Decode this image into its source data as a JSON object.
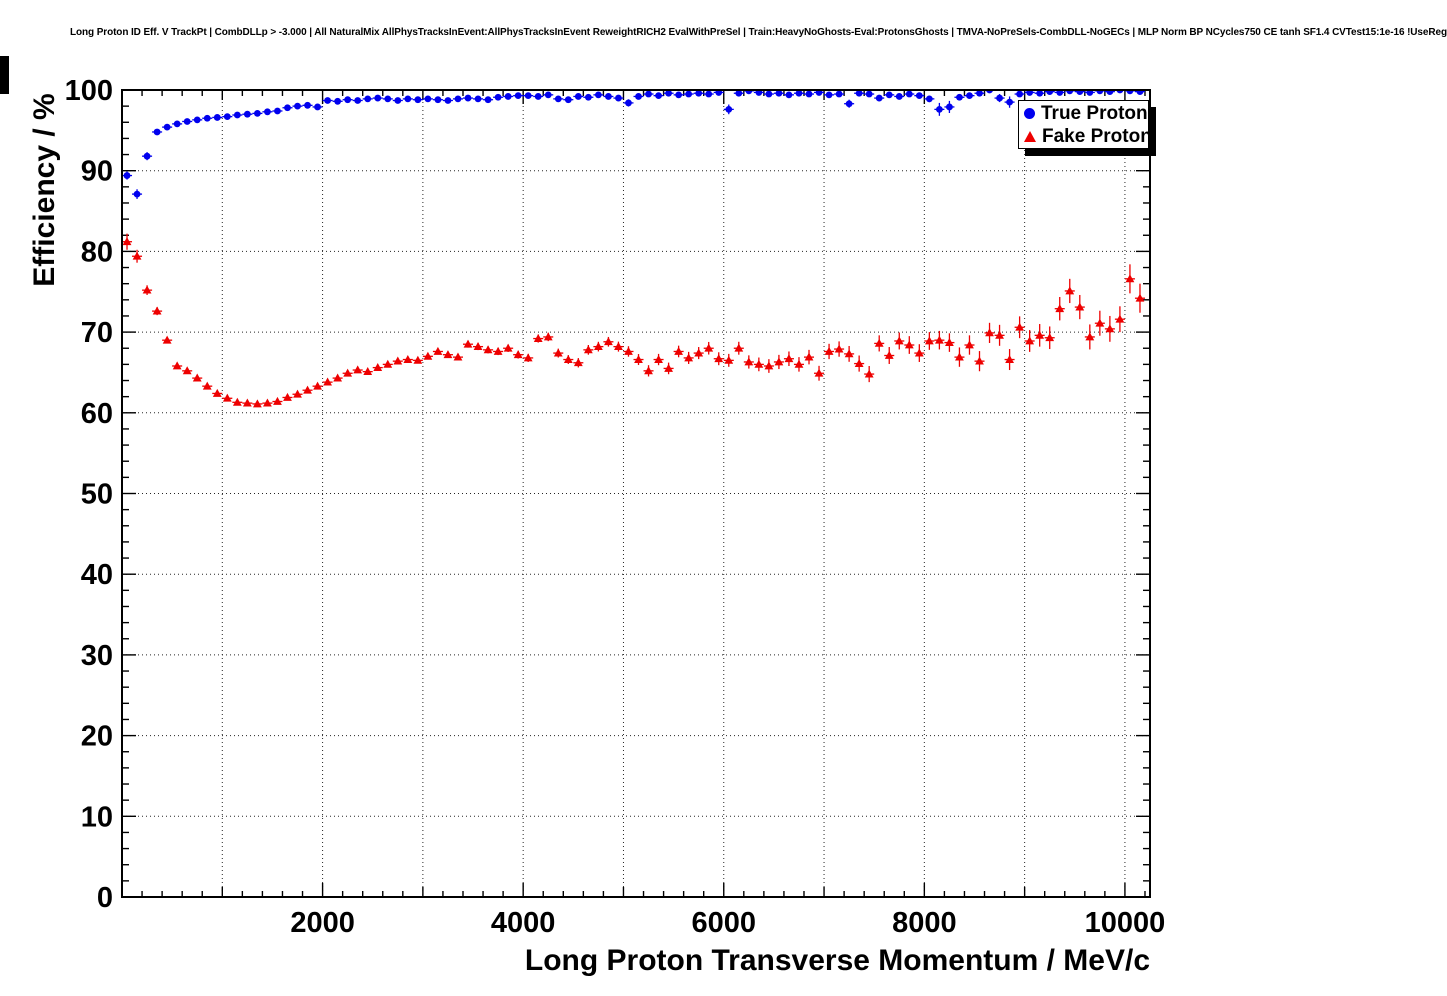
{
  "chart_data": {
    "type": "scatter",
    "title": "Long Proton ID Eff. V TrackPt | CombDLLp > -3.000 | All NaturalMix AllPhysTracksInEvent:AllPhysTracksInEvent ReweightRICH2 EvalWithPreSel | Train:HeavyNoGhosts-Eval:ProtonsGhosts | TMVA-NoPreSels-CombDLL-NoGECs | MLP Norm BP NCycles750 CE tanh SF1.4 CVTest15:1e-16 !UseReg",
    "xlabel": "Long Proton Transverse Momentum / MeV/c",
    "ylabel": "Efficiency / %",
    "xlim": [
      0,
      10250
    ],
    "ylim": [
      0,
      100
    ],
    "xticks": [
      2000,
      4000,
      6000,
      8000,
      10000
    ],
    "yticks": [
      0,
      10,
      20,
      30,
      40,
      50,
      60,
      70,
      80,
      90,
      100
    ],
    "x_minor_step": 200,
    "y_minor_step": 2,
    "grid": true,
    "grid_style": "dotted",
    "legend_position": "top-right",
    "background": "#ffffff",
    "frame_color": "#000000",
    "series": [
      {
        "name": "True Proton",
        "marker": "circle",
        "color": "#0000ee",
        "points": [
          [
            50,
            89.4,
            0.5
          ],
          [
            150,
            87.1,
            0.6
          ],
          [
            250,
            91.8,
            0.5
          ],
          [
            350,
            94.8,
            0.3
          ],
          [
            450,
            95.4,
            0.25
          ],
          [
            550,
            95.8,
            0.2
          ],
          [
            650,
            96.1,
            0.2
          ],
          [
            750,
            96.3,
            0.2
          ],
          [
            850,
            96.5,
            0.15
          ],
          [
            950,
            96.6,
            0.15
          ],
          [
            1050,
            96.7,
            0.15
          ],
          [
            1150,
            96.9,
            0.15
          ],
          [
            1250,
            97.0,
            0.12
          ],
          [
            1350,
            97.1,
            0.12
          ],
          [
            1450,
            97.3,
            0.12
          ],
          [
            1550,
            97.4,
            0.12
          ],
          [
            1650,
            97.8,
            0.12
          ],
          [
            1750,
            98.0,
            0.12
          ],
          [
            1850,
            98.1,
            0.12
          ],
          [
            1950,
            97.9,
            0.15
          ],
          [
            2050,
            98.7,
            0.12
          ],
          [
            2150,
            98.6,
            0.12
          ],
          [
            2250,
            98.8,
            0.12
          ],
          [
            2350,
            98.7,
            0.13
          ],
          [
            2450,
            98.9,
            0.13
          ],
          [
            2550,
            99.0,
            0.13
          ],
          [
            2650,
            98.9,
            0.14
          ],
          [
            2750,
            98.7,
            0.15
          ],
          [
            2850,
            98.9,
            0.14
          ],
          [
            2950,
            98.8,
            0.15
          ],
          [
            3050,
            98.9,
            0.15
          ],
          [
            3150,
            98.8,
            0.15
          ],
          [
            3250,
            98.7,
            0.16
          ],
          [
            3350,
            98.9,
            0.15
          ],
          [
            3450,
            99.0,
            0.15
          ],
          [
            3550,
            98.9,
            0.16
          ],
          [
            3650,
            98.8,
            0.17
          ],
          [
            3750,
            99.1,
            0.15
          ],
          [
            3850,
            99.2,
            0.15
          ],
          [
            3950,
            99.3,
            0.15
          ],
          [
            4050,
            99.3,
            0.15
          ],
          [
            4150,
            99.2,
            0.16
          ],
          [
            4250,
            99.4,
            0.15
          ],
          [
            4350,
            98.9,
            0.2
          ],
          [
            4450,
            98.8,
            0.2
          ],
          [
            4550,
            99.2,
            0.18
          ],
          [
            4650,
            99.1,
            0.2
          ],
          [
            4750,
            99.4,
            0.18
          ],
          [
            4850,
            99.2,
            0.2
          ],
          [
            4950,
            99.0,
            0.25
          ],
          [
            5050,
            98.4,
            0.45
          ],
          [
            5150,
            99.2,
            0.2
          ],
          [
            5250,
            99.5,
            0.18
          ],
          [
            5350,
            99.3,
            0.22
          ],
          [
            5450,
            99.6,
            0.15
          ],
          [
            5550,
            99.4,
            0.2
          ],
          [
            5650,
            99.5,
            0.18
          ],
          [
            5750,
            99.6,
            0.16
          ],
          [
            5850,
            99.5,
            0.2
          ],
          [
            5950,
            99.7,
            0.15
          ],
          [
            6050,
            97.6,
            0.6
          ],
          [
            6150,
            99.6,
            0.18
          ],
          [
            6250,
            99.9,
            0.1
          ],
          [
            6350,
            99.7,
            0.16
          ],
          [
            6450,
            99.5,
            0.22
          ],
          [
            6550,
            99.6,
            0.2
          ],
          [
            6650,
            99.4,
            0.28
          ],
          [
            6750,
            99.6,
            0.2
          ],
          [
            6850,
            99.5,
            0.24
          ],
          [
            6950,
            99.7,
            0.18
          ],
          [
            7050,
            99.4,
            0.3
          ],
          [
            7150,
            99.5,
            0.25
          ],
          [
            7250,
            98.3,
            0.5
          ],
          [
            7350,
            99.6,
            0.2
          ],
          [
            7450,
            99.5,
            0.25
          ],
          [
            7550,
            99.0,
            0.35
          ],
          [
            7650,
            99.4,
            0.3
          ],
          [
            7750,
            99.2,
            0.35
          ],
          [
            7850,
            99.5,
            0.25
          ],
          [
            7950,
            99.3,
            0.3
          ],
          [
            8050,
            98.9,
            0.4
          ],
          [
            8150,
            97.6,
            0.8
          ],
          [
            8250,
            97.9,
            0.75
          ],
          [
            8350,
            99.1,
            0.4
          ],
          [
            8450,
            99.3,
            0.35
          ],
          [
            8550,
            99.6,
            0.25
          ],
          [
            8650,
            100.0,
            0.05
          ],
          [
            8750,
            99.0,
            0.5
          ],
          [
            8850,
            98.5,
            0.7
          ],
          [
            8950,
            99.5,
            0.3
          ],
          [
            9050,
            99.7,
            0.25
          ],
          [
            9150,
            99.6,
            0.3
          ],
          [
            9250,
            99.8,
            0.2
          ],
          [
            9350,
            99.7,
            0.25
          ],
          [
            9450,
            99.9,
            0.1
          ],
          [
            9550,
            99.8,
            0.2
          ],
          [
            9650,
            99.7,
            0.3
          ],
          [
            9750,
            99.9,
            0.1
          ],
          [
            9850,
            99.8,
            0.2
          ],
          [
            9950,
            100.0,
            0.05
          ],
          [
            10050,
            99.9,
            0.1
          ],
          [
            10150,
            99.8,
            0.2
          ]
        ]
      },
      {
        "name": "Fake Proton",
        "marker": "triangle",
        "color": "#ee0000",
        "points": [
          [
            50,
            81.2,
            1.0
          ],
          [
            150,
            79.4,
            0.8
          ],
          [
            250,
            75.2,
            0.6
          ],
          [
            350,
            72.6,
            0.5
          ],
          [
            450,
            69.0,
            0.4
          ],
          [
            550,
            65.8,
            0.35
          ],
          [
            650,
            65.2,
            0.3
          ],
          [
            750,
            64.3,
            0.3
          ],
          [
            850,
            63.3,
            0.28
          ],
          [
            950,
            62.4,
            0.26
          ],
          [
            1050,
            61.8,
            0.25
          ],
          [
            1150,
            61.3,
            0.25
          ],
          [
            1250,
            61.2,
            0.24
          ],
          [
            1350,
            61.1,
            0.24
          ],
          [
            1450,
            61.2,
            0.24
          ],
          [
            1550,
            61.4,
            0.25
          ],
          [
            1650,
            61.9,
            0.25
          ],
          [
            1750,
            62.3,
            0.26
          ],
          [
            1850,
            62.8,
            0.26
          ],
          [
            1950,
            63.3,
            0.27
          ],
          [
            2050,
            63.8,
            0.28
          ],
          [
            2150,
            64.3,
            0.28
          ],
          [
            2250,
            64.9,
            0.3
          ],
          [
            2350,
            65.3,
            0.3
          ],
          [
            2450,
            65.1,
            0.3
          ],
          [
            2550,
            65.6,
            0.32
          ],
          [
            2650,
            66.0,
            0.33
          ],
          [
            2750,
            66.4,
            0.34
          ],
          [
            2850,
            66.6,
            0.35
          ],
          [
            2950,
            66.5,
            0.36
          ],
          [
            3050,
            67.0,
            0.37
          ],
          [
            3150,
            67.6,
            0.38
          ],
          [
            3250,
            67.2,
            0.4
          ],
          [
            3350,
            66.9,
            0.4
          ],
          [
            3450,
            68.5,
            0.42
          ],
          [
            3550,
            68.2,
            0.43
          ],
          [
            3650,
            67.8,
            0.44
          ],
          [
            3750,
            67.6,
            0.45
          ],
          [
            3850,
            68.0,
            0.46
          ],
          [
            3950,
            67.2,
            0.48
          ],
          [
            4050,
            66.8,
            0.5
          ],
          [
            4150,
            69.2,
            0.5
          ],
          [
            4250,
            69.4,
            0.52
          ],
          [
            4350,
            67.4,
            0.55
          ],
          [
            4450,
            66.6,
            0.55
          ],
          [
            4550,
            66.2,
            0.58
          ],
          [
            4650,
            67.8,
            0.6
          ],
          [
            4750,
            68.2,
            0.6
          ],
          [
            4850,
            68.8,
            0.6
          ],
          [
            4950,
            68.2,
            0.62
          ],
          [
            5050,
            67.6,
            0.65
          ],
          [
            5150,
            66.6,
            0.68
          ],
          [
            5250,
            65.2,
            0.7
          ],
          [
            5350,
            66.6,
            0.7
          ],
          [
            5450,
            65.5,
            0.72
          ],
          [
            5550,
            67.6,
            0.72
          ],
          [
            5650,
            66.8,
            0.75
          ],
          [
            5750,
            67.4,
            0.75
          ],
          [
            5850,
            68.0,
            0.78
          ],
          [
            5950,
            66.7,
            0.8
          ],
          [
            6050,
            66.5,
            0.8
          ],
          [
            6150,
            68.0,
            0.8
          ],
          [
            6250,
            66.3,
            0.82
          ],
          [
            6350,
            66.0,
            0.85
          ],
          [
            6450,
            65.8,
            0.85
          ],
          [
            6550,
            66.3,
            0.88
          ],
          [
            6650,
            66.7,
            0.9
          ],
          [
            6750,
            66.0,
            0.9
          ],
          [
            6850,
            66.9,
            0.9
          ],
          [
            6950,
            64.9,
            0.92
          ],
          [
            7050,
            67.6,
            0.95
          ],
          [
            7150,
            67.9,
            0.95
          ],
          [
            7250,
            67.3,
            0.98
          ],
          [
            7350,
            66.1,
            1.0
          ],
          [
            7450,
            64.8,
            1.0
          ],
          [
            7550,
            68.6,
            1.0
          ],
          [
            7650,
            67.1,
            1.05
          ],
          [
            7750,
            68.9,
            1.05
          ],
          [
            7850,
            68.4,
            1.1
          ],
          [
            7950,
            67.4,
            1.1
          ],
          [
            8050,
            68.9,
            1.1
          ],
          [
            8150,
            69.0,
            1.15
          ],
          [
            8250,
            68.7,
            1.15
          ],
          [
            8350,
            66.9,
            1.2
          ],
          [
            8450,
            68.4,
            1.2
          ],
          [
            8550,
            66.4,
            1.25
          ],
          [
            8650,
            69.9,
            1.25
          ],
          [
            8750,
            69.6,
            1.3
          ],
          [
            8850,
            66.6,
            1.3
          ],
          [
            8950,
            70.6,
            1.35
          ],
          [
            9050,
            68.9,
            1.35
          ],
          [
            9150,
            69.6,
            1.4
          ],
          [
            9250,
            69.3,
            1.4
          ],
          [
            9350,
            72.9,
            1.45
          ],
          [
            9450,
            75.1,
            1.5
          ],
          [
            9550,
            73.1,
            1.5
          ],
          [
            9650,
            69.4,
            1.55
          ],
          [
            9750,
            71.1,
            1.55
          ],
          [
            9850,
            70.4,
            1.6
          ],
          [
            9950,
            71.6,
            1.6
          ],
          [
            10050,
            76.6,
            1.8
          ],
          [
            10150,
            74.2,
            1.8
          ]
        ]
      }
    ]
  }
}
